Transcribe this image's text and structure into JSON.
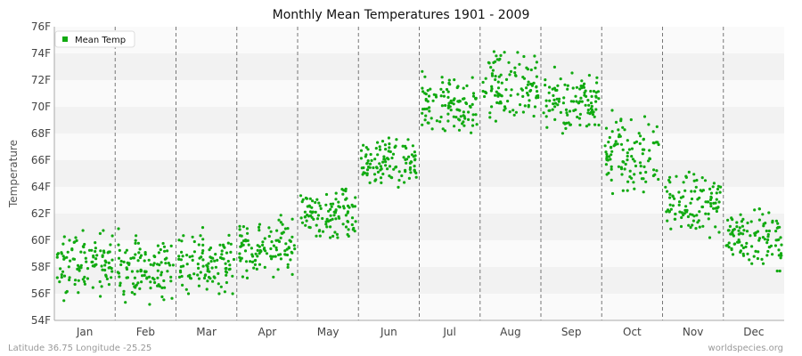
{
  "chart_data": {
    "type": "scatter",
    "title": "Monthly Mean Temperatures 1901 - 2009",
    "ylabel": "Temperature",
    "xlabel": "",
    "categories": [
      "Jan",
      "Feb",
      "Mar",
      "Apr",
      "May",
      "Jun",
      "Jul",
      "Aug",
      "Sep",
      "Oct",
      "Nov",
      "Dec"
    ],
    "ylim": [
      54,
      76
    ],
    "y_ticks": [
      "54F",
      "56F",
      "58F",
      "60F",
      "62F",
      "64F",
      "66F",
      "68F",
      "70F",
      "72F",
      "74F",
      "76F"
    ],
    "grid": true,
    "legend": {
      "position": "top-left",
      "entries": [
        "Mean Temp"
      ]
    },
    "series": [
      {
        "name": "Mean Temp",
        "color": "#11aa11",
        "years": [
          1901,
          2009
        ],
        "monthly_ranges": [
          {
            "month": "Jan",
            "min": 54.9,
            "max": 61.3,
            "mean": 58.3
          },
          {
            "month": "Feb",
            "min": 55.2,
            "max": 61.0,
            "mean": 57.8
          },
          {
            "month": "Mar",
            "min": 56.0,
            "max": 61.3,
            "mean": 58.3
          },
          {
            "month": "Apr",
            "min": 56.9,
            "max": 62.4,
            "mean": 59.4
          },
          {
            "month": "May",
            "min": 60.2,
            "max": 65.0,
            "mean": 62.0
          },
          {
            "month": "Jun",
            "min": 63.5,
            "max": 68.2,
            "mean": 65.6
          },
          {
            "month": "Jul",
            "min": 67.6,
            "max": 73.1,
            "mean": 70.0
          },
          {
            "month": "Aug",
            "min": 68.6,
            "max": 75.0,
            "mean": 71.6
          },
          {
            "month": "Sep",
            "min": 67.7,
            "max": 73.0,
            "mean": 70.5
          },
          {
            "month": "Oct",
            "min": 63.5,
            "max": 70.5,
            "mean": 66.4
          },
          {
            "month": "Nov",
            "min": 60.2,
            "max": 66.9,
            "mean": 62.8
          },
          {
            "month": "Dec",
            "min": 57.7,
            "max": 63.4,
            "mean": 60.2
          }
        ]
      }
    ]
  },
  "footer": {
    "location": "Latitude 36.75 Longitude -25.25",
    "source": "worldspecies.org"
  },
  "colors": {
    "band_light": "#fafafa",
    "band_dark": "#f2f2f2",
    "divider": "#777777",
    "axis": "#aaaaaa"
  }
}
